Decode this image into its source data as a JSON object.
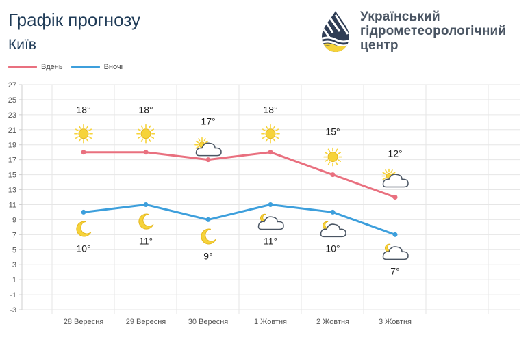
{
  "header": {
    "title": "Графік прогнозу",
    "city": "Київ"
  },
  "logo": {
    "line1": "Український",
    "line2": "гідрометеорологічний",
    "line3": "центр",
    "icon": "droplet-logo-icon"
  },
  "colors": {
    "day": "#e9707f",
    "night": "#3d9fdc",
    "grid": "#e6e6e6",
    "axis_text": "#555555",
    "sun": "#f6d33a",
    "moon": "#f6d33a",
    "cloud_stroke": "#4a5563"
  },
  "chart_data": {
    "type": "line",
    "categories": [
      "28 Вересня",
      "29 Вересня",
      "30 Вересня",
      "1 Жовтня",
      "2 Жовтня",
      "3 Жовтня"
    ],
    "series": [
      {
        "name": "Вдень",
        "values": [
          18,
          18,
          17,
          18,
          15,
          12
        ],
        "labels": [
          "18°",
          "18°",
          "17°",
          "18°",
          "15°",
          "12°"
        ],
        "icons": [
          "sun-icon",
          "sun-icon",
          "sun-cloud-icon",
          "sun-icon",
          "sun-icon",
          "sun-cloud-icon"
        ]
      },
      {
        "name": "Вночі",
        "values": [
          10,
          11,
          9,
          11,
          10,
          7
        ],
        "labels": [
          "10°",
          "11°",
          "9°",
          "11°",
          "10°",
          "7°"
        ],
        "icons": [
          "moon-icon",
          "moon-icon",
          "moon-icon",
          "moon-cloud-icon",
          "moon-cloud-icon",
          "moon-cloud-icon"
        ]
      }
    ],
    "yticks": [
      "27",
      "25",
      "23",
      "21",
      "19",
      "17",
      "15",
      "13",
      "11",
      "9",
      "7",
      "5",
      "3",
      "1",
      "-1",
      "-3"
    ],
    "ylim": [
      -3,
      27
    ],
    "grid": true,
    "legend": "top-left",
    "title": "",
    "xlabel": "",
    "ylabel": ""
  }
}
